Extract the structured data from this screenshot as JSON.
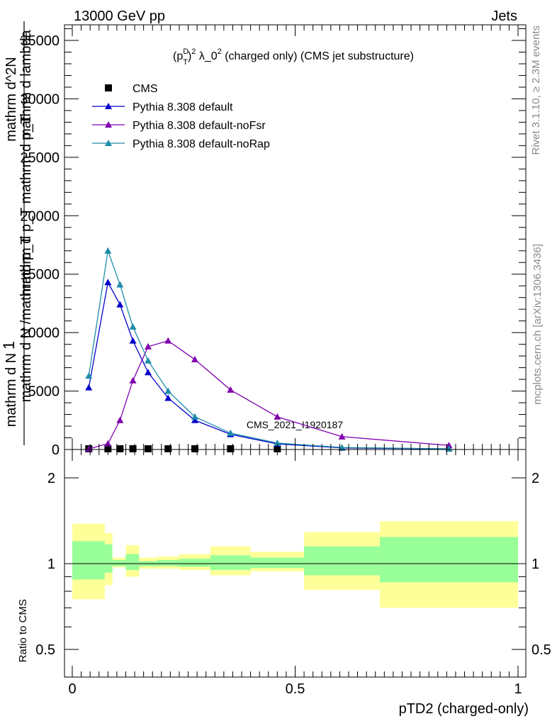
{
  "header": {
    "left": "13000 GeV pp",
    "right": "Jets"
  },
  "side_labels": {
    "rivet": "Rivet 3.1.10, ≥ 2.3M events",
    "mcplots": "mcplots.cern.ch [arXiv:1306.3436]"
  },
  "chart_data": [
    {
      "type": "line",
      "title": "(p_T^D)^2 λ_0^2 (charged only) (CMS jet substructure)",
      "ylabel": "1 / mathrm d N / mathrmd p_T mathrm d p_T mathrm d lambda  mathrm d^2N",
      "ylim": [
        0,
        38000
      ],
      "xlim": [
        -0.02,
        1.02
      ],
      "yticks": [
        0,
        5000,
        10000,
        15000,
        20000,
        25000,
        30000,
        35000
      ],
      "ytick_labels": [
        "0",
        "5000",
        "10000",
        "15000",
        "20000",
        "25000",
        "30000",
        "35000"
      ],
      "watermark": "CMS_2021_I1920187",
      "legend_position": "top-left",
      "series": [
        {
          "name": "CMS",
          "marker": "square",
          "color": "#000000",
          "x": [
            0.037,
            0.08,
            0.107,
            0.136,
            0.17,
            0.215,
            0.275,
            0.355,
            0.46
          ],
          "y": [
            0,
            0,
            0,
            0,
            0,
            0,
            0,
            0,
            0
          ]
        },
        {
          "name": "Pythia 8.308 default",
          "marker": "triangle",
          "color": "#0000cc",
          "x": [
            0.037,
            0.08,
            0.107,
            0.136,
            0.17,
            0.215,
            0.275,
            0.355,
            0.46,
            0.605,
            0.845
          ],
          "y": [
            5300,
            14300,
            12400,
            9300,
            6600,
            4400,
            2500,
            1300,
            480,
            140,
            50
          ]
        },
        {
          "name": "Pythia 8.308 default-noFsr",
          "marker": "triangle",
          "color": "#8000b0",
          "x": [
            0.037,
            0.08,
            0.107,
            0.136,
            0.17,
            0.215,
            0.275,
            0.355,
            0.46,
            0.605,
            0.845
          ],
          "y": [
            50,
            500,
            2500,
            5900,
            8800,
            9300,
            7700,
            5100,
            2800,
            1100,
            350
          ]
        },
        {
          "name": "Pythia 8.308 default-noRap",
          "marker": "triangle",
          "color": "#1e8caa",
          "x": [
            0.037,
            0.08,
            0.107,
            0.136,
            0.17,
            0.215,
            0.275,
            0.355,
            0.46,
            0.605,
            0.845
          ],
          "y": [
            6300,
            17000,
            14100,
            10500,
            7600,
            5000,
            2800,
            1400,
            550,
            170,
            60
          ]
        }
      ]
    },
    {
      "type": "area",
      "ylabel": "Ratio to CMS",
      "xlabel": "pTD2 (charged-only)",
      "ylim": [
        0.38,
        2.3
      ],
      "log_scale_y": true,
      "xlim": [
        -0.02,
        1.02
      ],
      "xticks": [
        0,
        0.5,
        1
      ],
      "xtick_labels": [
        "0",
        "0.5",
        "1"
      ],
      "ytick_labels": [
        "0.5",
        "1",
        "2"
      ],
      "reference_line": 1,
      "band_colors": {
        "inner": "#99ff99",
        "outer": "#ffff99"
      },
      "bins": [
        {
          "x0": 0.0,
          "x1": 0.073,
          "outer": [
            0.75,
            1.38
          ],
          "inner": [
            0.88,
            1.2
          ]
        },
        {
          "x0": 0.073,
          "x1": 0.09,
          "outer": [
            0.84,
            1.28
          ],
          "inner": [
            0.93,
            1.17
          ]
        },
        {
          "x0": 0.09,
          "x1": 0.12,
          "outer": [
            0.97,
            1.05
          ],
          "inner": [
            0.98,
            1.03
          ]
        },
        {
          "x0": 0.12,
          "x1": 0.15,
          "outer": [
            0.9,
            1.16
          ],
          "inner": [
            0.95,
            1.08
          ]
        },
        {
          "x0": 0.15,
          "x1": 0.19,
          "outer": [
            0.96,
            1.05
          ],
          "inner": [
            0.98,
            1.02
          ]
        },
        {
          "x0": 0.19,
          "x1": 0.24,
          "outer": [
            0.96,
            1.06
          ],
          "inner": [
            0.98,
            1.03
          ]
        },
        {
          "x0": 0.24,
          "x1": 0.31,
          "outer": [
            0.95,
            1.08
          ],
          "inner": [
            0.975,
            1.04
          ]
        },
        {
          "x0": 0.31,
          "x1": 0.4,
          "outer": [
            0.91,
            1.15
          ],
          "inner": [
            0.95,
            1.07
          ]
        },
        {
          "x0": 0.4,
          "x1": 0.52,
          "outer": [
            0.94,
            1.1
          ],
          "inner": [
            0.965,
            1.05
          ]
        },
        {
          "x0": 0.52,
          "x1": 0.69,
          "outer": [
            0.81,
            1.29
          ],
          "inner": [
            0.91,
            1.15
          ]
        },
        {
          "x0": 0.69,
          "x1": 1.0,
          "outer": [
            0.7,
            1.41
          ],
          "inner": [
            0.86,
            1.24
          ]
        }
      ]
    }
  ]
}
